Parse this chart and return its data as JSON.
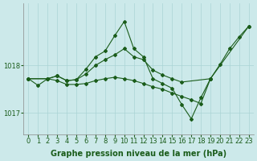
{
  "xlabel": "Graphe pression niveau de la mer (hPa)",
  "background_color": "#cce9ea",
  "line_color": "#1a5c1a",
  "marker": "D",
  "markersize": 2.0,
  "linewidth": 0.8,
  "yticks": [
    1017,
    1018
  ],
  "ylim": [
    1016.55,
    1019.3
  ],
  "xlim": [
    -0.5,
    23.5
  ],
  "xticks": [
    0,
    1,
    2,
    3,
    4,
    5,
    6,
    7,
    8,
    9,
    10,
    11,
    12,
    13,
    14,
    15,
    16,
    17,
    18,
    19,
    20,
    21,
    22,
    23
  ],
  "grid_color": "#aad4d5",
  "tick_fontsize": 6,
  "label_fontsize": 7,
  "label_fontweight": "bold",
  "series1_x": [
    0,
    1,
    2,
    3,
    4,
    5,
    6,
    7,
    8,
    9,
    10,
    11,
    12,
    13,
    14,
    15,
    16,
    17,
    18,
    19,
    20,
    21,
    22,
    23
  ],
  "series1_y": [
    1017.72,
    1017.58,
    1017.72,
    1017.78,
    1017.68,
    1017.7,
    1017.92,
    1018.18,
    1018.3,
    1018.62,
    1018.92,
    1018.35,
    1018.18,
    1017.72,
    1017.62,
    1017.52,
    1017.18,
    1016.88,
    1017.32,
    1017.72,
    1018.02,
    1018.35,
    1018.6,
    1018.82
  ],
  "series2_x": [
    0,
    2,
    3,
    4,
    5,
    6,
    7,
    8,
    9,
    10,
    11,
    12,
    13,
    14,
    15,
    16,
    19,
    23
  ],
  "series2_y": [
    1017.72,
    1017.72,
    1017.78,
    1017.68,
    1017.7,
    1017.82,
    1018.0,
    1018.12,
    1018.22,
    1018.35,
    1018.18,
    1018.12,
    1017.9,
    1017.8,
    1017.72,
    1017.65,
    1017.72,
    1018.82
  ],
  "series3_x": [
    0,
    2,
    3,
    4,
    5,
    6,
    7,
    8,
    9,
    10,
    11,
    12,
    13,
    14,
    15,
    16,
    17,
    18,
    19
  ],
  "series3_y": [
    1017.72,
    1017.72,
    1017.68,
    1017.6,
    1017.6,
    1017.62,
    1017.68,
    1017.72,
    1017.75,
    1017.72,
    1017.68,
    1017.62,
    1017.55,
    1017.5,
    1017.42,
    1017.35,
    1017.28,
    1017.2,
    1017.72
  ]
}
